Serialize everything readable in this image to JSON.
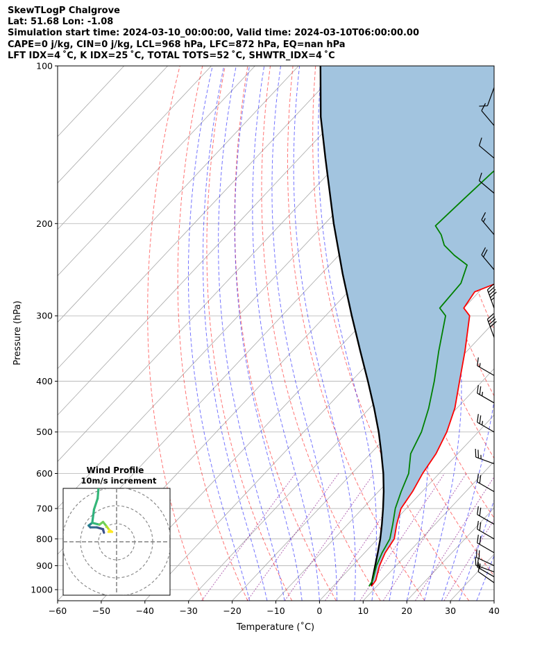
{
  "header": {
    "line1": "SkewTLogP Chalgrove",
    "line2": "Lat: 51.68   Lon: -1.08",
    "line3": "Simulation start time: 2024-03-10_00:00:00, Valid time: 2024-03-10T06:00:00.00",
    "line4": "CAPE=0 j/kg, CIN=0 j/kg, LCL=968 hPa, LFC=872 hPa, EQ=nan hPa",
    "line5": "LFT IDX=4 ˚C, K IDX=25 ˚C, TOTAL TOTS=52 ˚C, SHWTR_IDX=4 ˚C"
  },
  "chart_data": {
    "type": "line",
    "xlabel": "Temperature (˚C)",
    "ylabel": "Pressure (hPa)",
    "xlim": [
      -60,
      40
    ],
    "ylim_pressure": [
      1050,
      100
    ],
    "y_scale": "log",
    "grid": true,
    "x_ticks": [
      -60,
      -50,
      -40,
      -30,
      -20,
      -10,
      0,
      10,
      20,
      30,
      40
    ],
    "x_tick_labels": [
      "−60",
      "−50",
      "−40",
      "−30",
      "−20",
      "−10",
      "0",
      "10",
      "20",
      "30",
      "40"
    ],
    "y_ticks": [
      1000,
      900,
      800,
      700,
      600,
      500,
      400,
      300,
      200,
      100
    ],
    "y_tick_labels": [
      "1000",
      "900",
      "800",
      "700",
      "600",
      "500",
      "400",
      "300",
      "200",
      "100"
    ],
    "series": [
      {
        "role": "temperature",
        "color": "#ff0000",
        "points": [
          {
            "p": 985,
            "t": 8.8
          },
          {
            "p": 960,
            "t": 8.5
          },
          {
            "p": 900,
            "t": 6.2
          },
          {
            "p": 850,
            "t": 4.7
          },
          {
            "p": 800,
            "t": 3.8
          },
          {
            "p": 750,
            "t": 1.2
          },
          {
            "p": 700,
            "t": -1.2
          },
          {
            "p": 650,
            "t": -2.2
          },
          {
            "p": 600,
            "t": -3.8
          },
          {
            "p": 550,
            "t": -5.0
          },
          {
            "p": 500,
            "t": -7.2
          },
          {
            "p": 450,
            "t": -10.5
          },
          {
            "p": 400,
            "t": -15.2
          },
          {
            "p": 350,
            "t": -20.5
          },
          {
            "p": 300,
            "t": -27.0
          },
          {
            "p": 290,
            "t": -30.0
          },
          {
            "p": 270,
            "t": -31.0
          },
          {
            "p": 255,
            "t": -26.2
          },
          {
            "p": 245,
            "t": -28.1
          },
          {
            "p": 230,
            "t": -27.3
          },
          {
            "p": 210,
            "t": -24.5
          },
          {
            "p": 190,
            "t": -21.2
          },
          {
            "p": 175,
            "t": -19.5
          },
          {
            "p": 160,
            "t": -19.0
          },
          {
            "p": 150,
            "t": -17.4
          },
          {
            "p": 140,
            "t": -15.8
          },
          {
            "p": 130,
            "t": -14.7
          },
          {
            "p": 120,
            "t": -14.5
          },
          {
            "p": 110,
            "t": -13.8
          },
          {
            "p": 100,
            "t": -13.6
          }
        ]
      },
      {
        "role": "dewpoint",
        "color": "#008000",
        "points": [
          {
            "p": 985,
            "t": 8.2
          },
          {
            "p": 960,
            "t": 7.8
          },
          {
            "p": 900,
            "t": 5.5
          },
          {
            "p": 850,
            "t": 4.0
          },
          {
            "p": 800,
            "t": 2.8
          },
          {
            "p": 750,
            "t": 0.3
          },
          {
            "p": 700,
            "t": -2.5
          },
          {
            "p": 650,
            "t": -4.8
          },
          {
            "p": 600,
            "t": -7.0
          },
          {
            "p": 550,
            "t": -10.8
          },
          {
            "p": 500,
            "t": -13.0
          },
          {
            "p": 450,
            "t": -16.5
          },
          {
            "p": 400,
            "t": -21.0
          },
          {
            "p": 350,
            "t": -26.5
          },
          {
            "p": 300,
            "t": -32.5
          },
          {
            "p": 290,
            "t": -35.5
          },
          {
            "p": 260,
            "t": -36.0
          },
          {
            "p": 240,
            "t": -38.5
          },
          {
            "p": 230,
            "t": -43.5
          },
          {
            "p": 220,
            "t": -48.0
          },
          {
            "p": 210,
            "t": -51.0
          },
          {
            "p": 202,
            "t": -54.2
          },
          {
            "p": 180,
            "t": -53.5
          },
          {
            "p": 160,
            "t": -52.7
          },
          {
            "p": 140,
            "t": -50.6
          },
          {
            "p": 130,
            "t": -49.0
          },
          {
            "p": 115,
            "t": -46.8
          },
          {
            "p": 100,
            "t": -43.2
          }
        ]
      },
      {
        "role": "parcel profile",
        "color": "#000000",
        "points": [
          {
            "p": 985,
            "t": 8.8
          },
          {
            "p": 968,
            "t": 8.0
          },
          {
            "p": 900,
            "t": 5.2
          },
          {
            "p": 850,
            "t": 3.0
          },
          {
            "p": 800,
            "t": 0.6
          },
          {
            "p": 750,
            "t": -2.2
          },
          {
            "p": 700,
            "t": -5.3
          },
          {
            "p": 650,
            "t": -8.8
          },
          {
            "p": 600,
            "t": -12.8
          },
          {
            "p": 550,
            "t": -17.5
          },
          {
            "p": 500,
            "t": -22.8
          },
          {
            "p": 450,
            "t": -29.0
          },
          {
            "p": 400,
            "t": -36.2
          },
          {
            "p": 350,
            "t": -44.5
          },
          {
            "p": 300,
            "t": -54.0
          },
          {
            "p": 250,
            "t": -65.0
          },
          {
            "p": 200,
            "t": -78.0
          },
          {
            "p": 150,
            "t": -94.0
          },
          {
            "p": 125,
            "t": -104.0
          },
          {
            "p": 100,
            "t": -115.0
          }
        ]
      }
    ],
    "wind_barbs": [
      {
        "p": 970,
        "speed_kt": 10,
        "dir_deg": 305
      },
      {
        "p": 945,
        "speed_kt": 15,
        "dir_deg": 300
      },
      {
        "p": 925,
        "speed_kt": 15,
        "dir_deg": 290
      },
      {
        "p": 900,
        "speed_kt": 20,
        "dir_deg": 295
      },
      {
        "p": 850,
        "speed_kt": 20,
        "dir_deg": 300
      },
      {
        "p": 800,
        "speed_kt": 20,
        "dir_deg": 300
      },
      {
        "p": 750,
        "speed_kt": 20,
        "dir_deg": 300
      },
      {
        "p": 650,
        "speed_kt": 20,
        "dir_deg": 300
      },
      {
        "p": 575,
        "speed_kt": 25,
        "dir_deg": 290
      },
      {
        "p": 500,
        "speed_kt": 25,
        "dir_deg": 300
      },
      {
        "p": 440,
        "speed_kt": 25,
        "dir_deg": 300
      },
      {
        "p": 390,
        "speed_kt": 15,
        "dir_deg": 300
      },
      {
        "p": 330,
        "speed_kt": 40,
        "dir_deg": 340
      },
      {
        "p": 290,
        "speed_kt": 45,
        "dir_deg": 340
      },
      {
        "p": 245,
        "speed_kt": 20,
        "dir_deg": 320
      },
      {
        "p": 210,
        "speed_kt": 15,
        "dir_deg": 320
      },
      {
        "p": 175,
        "speed_kt": 10,
        "dir_deg": 310
      },
      {
        "p": 150,
        "speed_kt": 10,
        "dir_deg": 310
      },
      {
        "p": 130,
        "speed_kt": 10,
        "dir_deg": 320
      },
      {
        "p": 110,
        "speed_kt": 10,
        "dir_deg": 200
      }
    ],
    "hodograph": {
      "title": "Wind Profile",
      "subtitle": "10m/s increment",
      "rings_ms": [
        10,
        20,
        30
      ],
      "points": [
        {
          "u": -7,
          "v": 5,
          "color": "#440154"
        },
        {
          "u": -7.5,
          "v": 7,
          "color": "#3b528b"
        },
        {
          "u": -11,
          "v": 8,
          "color": "#3b528b"
        },
        {
          "u": -14.5,
          "v": 8,
          "color": "#31688e"
        },
        {
          "u": -15.5,
          "v": 9,
          "color": "#31688e"
        },
        {
          "u": -13.5,
          "v": 10.5,
          "color": "#26828e"
        },
        {
          "u": -9.5,
          "v": 9.5,
          "color": "#35b779"
        },
        {
          "u": -7.5,
          "v": 11,
          "color": "#6ece58"
        },
        {
          "u": -5.5,
          "v": 8.5,
          "color": "#6ece58"
        },
        {
          "u": -4,
          "v": 6.5,
          "color": "#b5de2b"
        },
        {
          "u": -2.5,
          "v": 5.5,
          "color": "#fde725"
        },
        {
          "u": -4.5,
          "v": 5.5,
          "color": "#fde725"
        }
      ],
      "upper_points": [
        {
          "u": -13.5,
          "v": 10.5,
          "color": "#1f9e89"
        },
        {
          "u": -12.5,
          "v": 18,
          "color": "#2db27d"
        },
        {
          "u": -10.5,
          "v": 24,
          "color": "#35b779"
        },
        {
          "u": -10,
          "v": 30,
          "color": "#35b779"
        }
      ]
    },
    "background_lines": {
      "dry_adiabat_color": "#ff0000",
      "moist_adiabat_color": "#0000ff",
      "mixing_ratio_color": "#800080",
      "isotherm_color": "#808080",
      "cape_fill_color": "#a2c4df"
    }
  }
}
